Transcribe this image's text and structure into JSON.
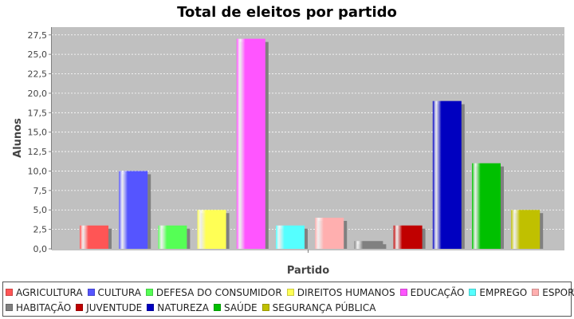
{
  "chart_data": {
    "type": "bar",
    "title": "Total de eleitos por partido",
    "xlabel": "Partido",
    "ylabel": "Alunos",
    "ylim": [
      0,
      28.5
    ],
    "yticks": [
      "0,0",
      "2,5",
      "5,0",
      "7,5",
      "10,0",
      "12,5",
      "15,0",
      "17,5",
      "20,0",
      "22,5",
      "25,0",
      "27,5"
    ],
    "grid": true,
    "legend_position": "bottom",
    "series": [
      {
        "name": "AGRICULTURA",
        "value": 3,
        "color": "#ff5555"
      },
      {
        "name": "CULTURA",
        "value": 10,
        "color": "#5555ff"
      },
      {
        "name": "DEFESA DO CONSUMIDOR",
        "value": 3,
        "color": "#55ff55"
      },
      {
        "name": "DIREITOS HUMANOS",
        "value": 5,
        "color": "#ffff55"
      },
      {
        "name": "EDUCAÇÃO",
        "value": 27,
        "color": "#ff55ff"
      },
      {
        "name": "EMPREGO",
        "value": 3,
        "color": "#55ffff"
      },
      {
        "name": "ESPORTES",
        "value": 4,
        "color": "#ffafaf"
      },
      {
        "name": "HABITAÇÃO",
        "value": 1,
        "color": "#808080"
      },
      {
        "name": "JUVENTUDE",
        "value": 3,
        "color": "#c00000"
      },
      {
        "name": "NATUREZA",
        "value": 19,
        "color": "#0000c0"
      },
      {
        "name": "SAÚDE",
        "value": 11,
        "color": "#00c000"
      },
      {
        "name": "SEGURANÇA PÚBLICA",
        "value": 5,
        "color": "#c0c000"
      }
    ]
  }
}
